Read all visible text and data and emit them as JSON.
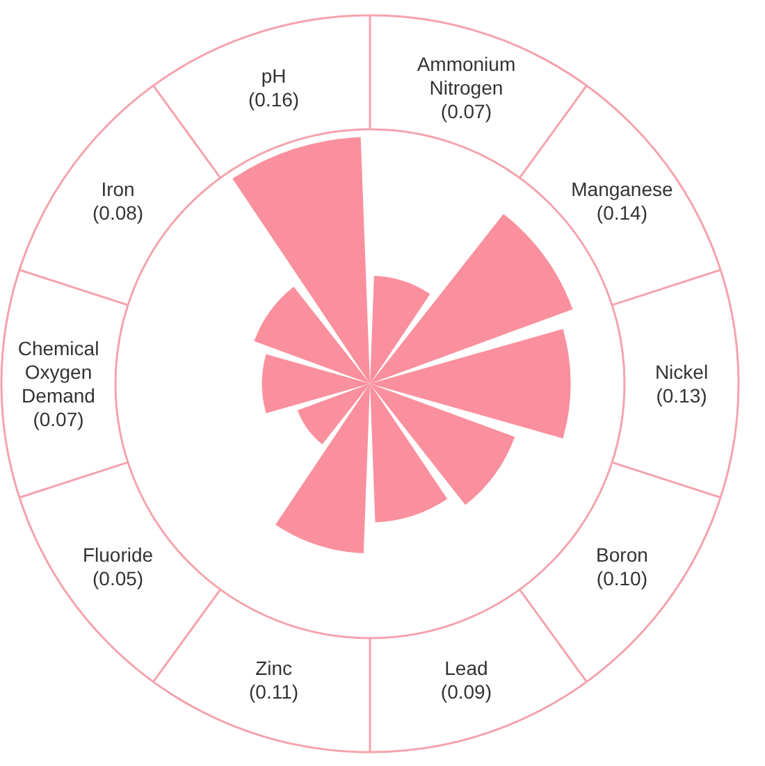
{
  "chart_data": {
    "type": "other",
    "categories": [
      "Ammonium Nitrogen",
      "Manganese",
      "Nickel",
      "Boron",
      "Lead",
      "Zinc",
      "Fluoride",
      "Chemical Oxygen Demand",
      "Iron",
      "pH"
    ],
    "values": [
      0.07,
      0.14,
      0.13,
      0.1,
      0.09,
      0.11,
      0.05,
      0.07,
      0.08,
      0.16
    ],
    "value_labels": [
      "(0.07)",
      "(0.14)",
      "(0.13)",
      "(0.10)",
      "(0.09)",
      "(0.11)",
      "(0.05)",
      "(0.07)",
      "(0.08)",
      "(0.16)"
    ],
    "color": "#fa909d"
  }
}
